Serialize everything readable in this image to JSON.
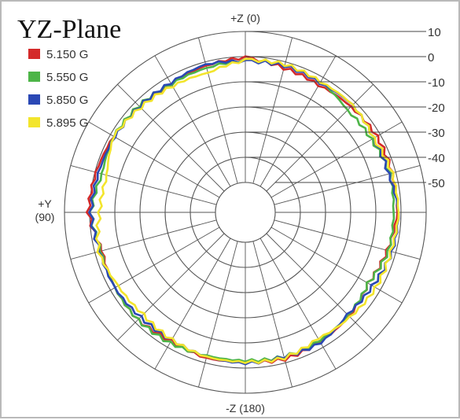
{
  "chart_data": {
    "type": "polar-line",
    "title": "YZ-Plane",
    "angle_labels": [
      {
        "angle": 0,
        "text": "+Z (0)"
      },
      {
        "angle": 90,
        "text": "+Y (90)"
      },
      {
        "angle": 180,
        "text": "-Z (180)"
      }
    ],
    "angle_ticks_every_deg": 15,
    "radial_unit": "dB",
    "radial_ticks": [
      10,
      0,
      -10,
      -20,
      -30,
      -40,
      -50
    ],
    "radial_tick_labels": [
      "10",
      "0",
      "-10",
      "-20",
      "-30",
      "-40",
      "-50"
    ],
    "rlim": [
      -50,
      10
    ],
    "grid": true,
    "legend_position": "top-left",
    "angles_deg": [
      0,
      15,
      30,
      45,
      60,
      75,
      90,
      105,
      120,
      135,
      150,
      165,
      180,
      195,
      210,
      225,
      240,
      255,
      270,
      285,
      300,
      315,
      330,
      345
    ],
    "series": [
      {
        "name": "5.150 G",
        "color": "#d42a2a",
        "values": [
          -0.5,
          -1.5,
          -3,
          -2.5,
          -1.5,
          -0.5,
          0.5,
          -3,
          -2,
          -1.5,
          -3,
          -2,
          -2.5,
          -1.5,
          -2.5,
          -3.5,
          -5.5,
          -3.5,
          -1.5,
          -1.5,
          -1.5,
          -2.5,
          -3.5,
          -2.5
        ]
      },
      {
        "name": "5.550 G",
        "color": "#4db548",
        "values": [
          -1.5,
          -2.5,
          -3,
          -2,
          -1.5,
          -3,
          -0.5,
          -2.5,
          -2,
          -1.5,
          -2,
          -3,
          -3,
          -2.5,
          -3,
          -4,
          -5.5,
          -3,
          -3,
          -2.5,
          -4,
          -4.5,
          -2,
          -1.5
        ]
      },
      {
        "name": "5.850 G",
        "color": "#2a48b5",
        "values": [
          -2,
          -1,
          -2.5,
          -2.5,
          -2,
          -1.5,
          -0.5,
          -2,
          -2,
          -3,
          -3.5,
          -2.5,
          -2,
          -2.5,
          -2,
          -4.5,
          -3.5,
          -1.5,
          -1,
          -3,
          -3,
          -1.5,
          -2.5,
          -1.5
        ]
      },
      {
        "name": "5.895 G",
        "color": "#f3e52c",
        "values": [
          -1.5,
          -4.5,
          -4,
          -3,
          -1.5,
          -5,
          -4,
          -1.5,
          -3.5,
          -4.5,
          -3.5,
          -2.5,
          -2.5,
          -2,
          -4,
          -3,
          -2,
          -2,
          -1,
          -1.5,
          -3,
          -1.5,
          -2,
          -1
        ]
      }
    ]
  }
}
